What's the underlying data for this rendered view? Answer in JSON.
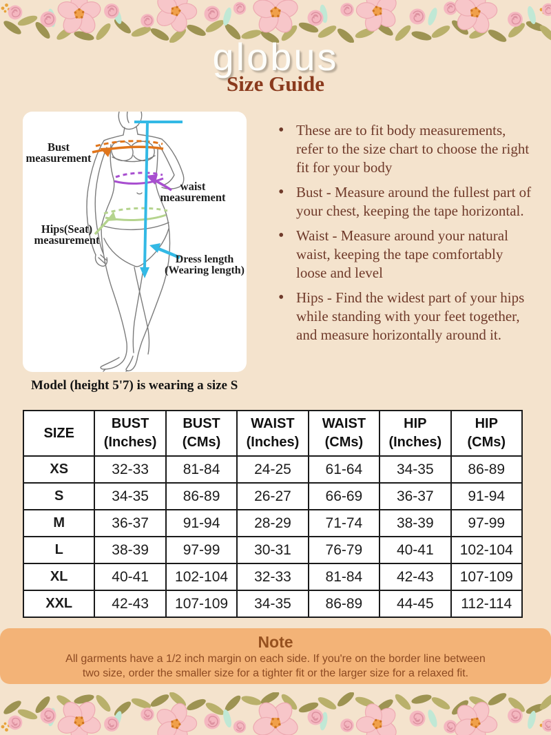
{
  "header": {
    "logo": "globus",
    "title": "Size Guide"
  },
  "diagram": {
    "labels": {
      "bust": [
        "Bust",
        "measurement"
      ],
      "waist": [
        "waist",
        "measurement"
      ],
      "hips": [
        "Hips(Seat)",
        "measurement"
      ],
      "dress": [
        "Dress length",
        "(Wearing length)"
      ]
    }
  },
  "instructions": {
    "bullets": [
      "These are to fit body measurements, refer to the size chart to choose the right fit for your body",
      "Bust - Measure around the fullest part of your chest, keeping the tape horizontal.",
      "Waist - Measure around your natural waist, keeping the tape comfortably loose and level",
      "Hips - Find the widest part of your hips while standing with your feet together, and measure horizontally around it."
    ]
  },
  "model_note": "Model (height 5'7) is wearing a size S",
  "size_table": {
    "headers": [
      [
        "SIZE",
        ""
      ],
      [
        "BUST",
        "(Inches)"
      ],
      [
        "BUST",
        "(CMs)"
      ],
      [
        "WAIST",
        "(Inches)"
      ],
      [
        "WAIST",
        "(CMs)"
      ],
      [
        "HIP",
        "(Inches)"
      ],
      [
        "HIP",
        "(CMs)"
      ]
    ],
    "rows": [
      {
        "size": "XS",
        "values": [
          "32-33",
          "81-84",
          "24-25",
          "61-64",
          "34-35",
          "86-89"
        ]
      },
      {
        "size": "S",
        "values": [
          "34-35",
          "86-89",
          "26-27",
          "66-69",
          "36-37",
          "91-94"
        ]
      },
      {
        "size": "M",
        "values": [
          "36-37",
          "91-94",
          "28-29",
          "71-74",
          "38-39",
          "97-99"
        ]
      },
      {
        "size": "L",
        "values": [
          "38-39",
          "97-99",
          "30-31",
          "76-79",
          "40-41",
          "102-104"
        ]
      },
      {
        "size": "XL",
        "values": [
          "40-41",
          "102-104",
          "32-33",
          "81-84",
          "42-43",
          "107-109"
        ]
      },
      {
        "size": "XXL",
        "values": [
          "42-43",
          "107-109",
          "34-35",
          "86-89",
          "44-45",
          "112-114"
        ]
      }
    ]
  },
  "note": {
    "title": "Note",
    "lines": [
      "All garments have a 1/2 inch margin on each side. If you're on the border line between",
      "two size, order the smaller size for a tighter fit or the larger size for a relaxed fit."
    ]
  },
  "colors": {
    "background": "#f4e3cd",
    "note_background": "#f3b377",
    "title": "#8a3a1d",
    "body_text": "#6f3a2a",
    "note_text": "#8d4a22",
    "bust_line": "#e0751b",
    "waist_line": "#a84fd0",
    "hips_line": "#b5d48e",
    "length_line": "#33b9e5"
  }
}
